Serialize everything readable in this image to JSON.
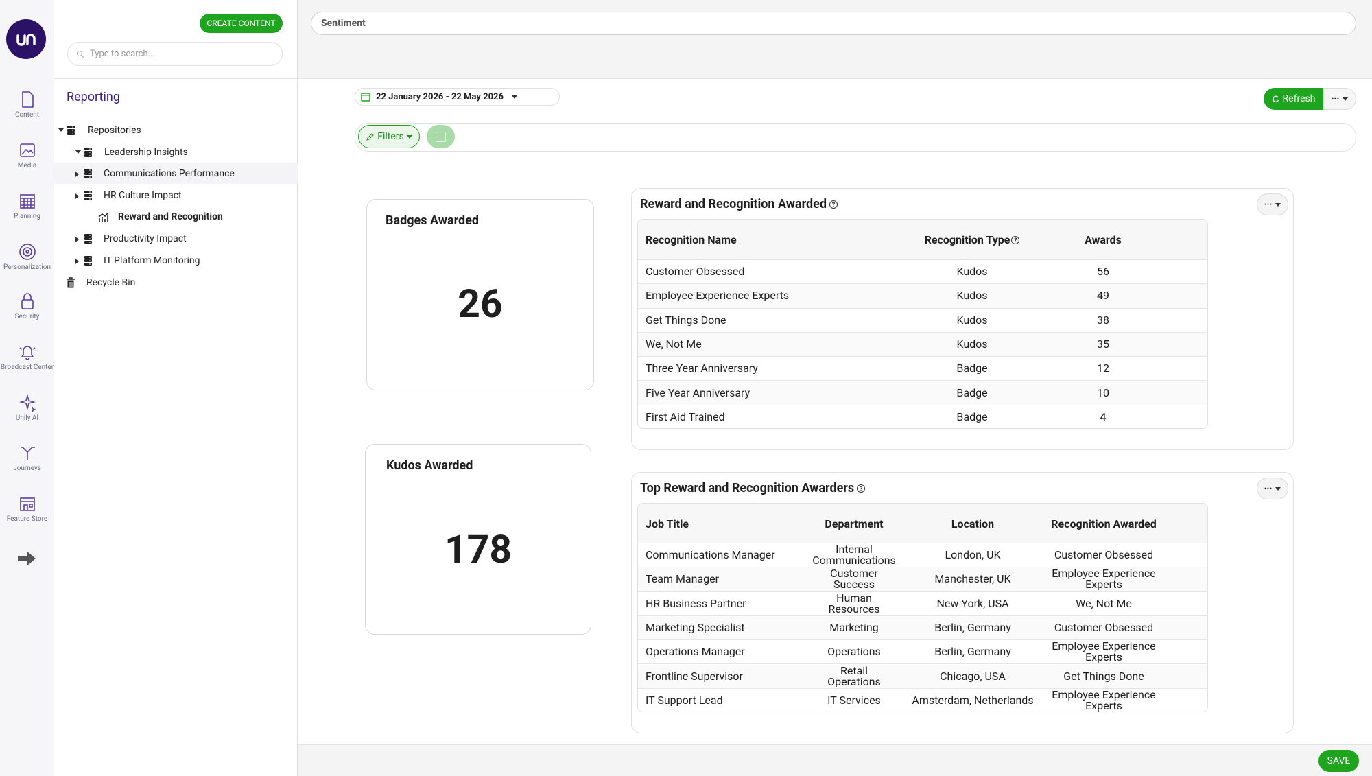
{
  "rail": {
    "nav": [
      "Content",
      "Media",
      "Planning",
      "Personalization",
      "Security",
      "Broadcast Center",
      "Unily AI",
      "Journeys",
      "Feature Store"
    ]
  },
  "panel": {
    "create_button": "CREATE CONTENT",
    "search_placeholder": "Type to search...",
    "title": "Reporting",
    "tree": [
      "Repositories",
      "Leadership Insights",
      "Communications Performance",
      "HR Culture Impact",
      "Reward and Recognition",
      "Productivity Impact",
      "IT Platform Monitoring",
      "Recycle Bin"
    ]
  },
  "header": {
    "search_value": "Sentiment"
  },
  "toolbar": {
    "date_range": "22 January 2026 - 22 May 2026",
    "refresh": "Refresh",
    "filters": "Filters"
  },
  "cards": [
    {
      "title": "Badges Awarded",
      "value": "26"
    },
    {
      "title": "Kudos Awarded",
      "value": "178"
    }
  ],
  "tables": [
    {
      "title": "Reward and Recognition Awarded",
      "headers": [
        "Recognition Name",
        "Recognition Type",
        "Awards"
      ],
      "rows": [
        [
          "Customer Obsessed",
          "Kudos",
          "56"
        ],
        [
          "Employee Experience Experts",
          "Kudos",
          "49"
        ],
        [
          "Get Things Done",
          "Kudos",
          "38"
        ],
        [
          "We, Not Me",
          "Kudos",
          "35"
        ],
        [
          "Three Year Anniversary",
          "Badge",
          "12"
        ],
        [
          "Five Year Anniversary",
          "Badge",
          "10"
        ],
        [
          "First Aid Trained",
          "Badge",
          "4"
        ]
      ]
    },
    {
      "title": "Top Reward and Recognition Awarders",
      "headers": [
        "Job Title",
        "Department",
        "Location",
        "Recognition Awarded"
      ],
      "rows": [
        [
          "Communications Manager",
          "Internal Communications",
          "London, UK",
          "Customer Obsessed"
        ],
        [
          "Team Manager",
          "Customer Success",
          "Manchester, UK",
          "Employee Experience Experts"
        ],
        [
          "HR Business Partner",
          "Human Resources",
          "New York, USA",
          "We, Not Me"
        ],
        [
          "Marketing Specialist",
          "Marketing",
          "Berlin, Germany",
          "Customer Obsessed"
        ],
        [
          "Operations Manager",
          "Operations",
          "Berlin, Germany",
          "Employee Experience Experts"
        ],
        [
          "Frontline Supervisor",
          "Retail Operations",
          "Chicago, USA",
          "Get Things Done"
        ],
        [
          "IT Support Lead",
          "IT Services",
          "Amsterdam, Netherlands",
          "Employee Experience Experts"
        ]
      ]
    }
  ],
  "footer": {
    "save": "SAVE"
  }
}
